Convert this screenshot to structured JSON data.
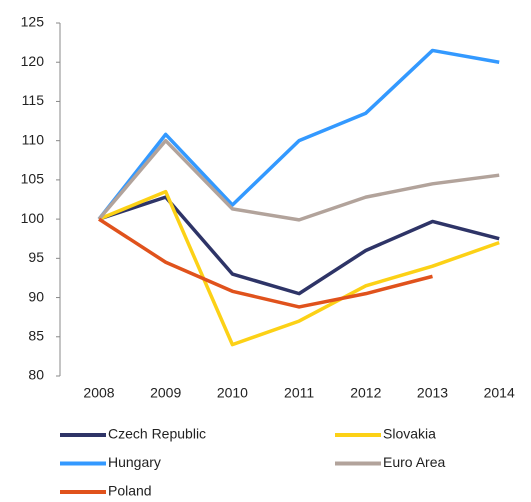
{
  "chart_data": {
    "type": "line",
    "categories": [
      "2008",
      "2009",
      "2010",
      "2011",
      "2012",
      "2013",
      "2014"
    ],
    "series": [
      {
        "name": "Czech Republic",
        "color": "#2e3467",
        "values": [
          100,
          102.8,
          93,
          90.5,
          96,
          99.7,
          97.5
        ]
      },
      {
        "name": "Slovakia",
        "color": "#fcd116",
        "values": [
          100,
          103.5,
          84,
          87,
          91.5,
          94,
          97
        ]
      },
      {
        "name": "Hungary",
        "color": "#3399ff",
        "values": [
          100,
          110.8,
          101.8,
          110,
          113.5,
          121.5,
          120
        ]
      },
      {
        "name": "Euro Area",
        "color": "#b2a39b",
        "values": [
          100,
          110,
          101.3,
          99.9,
          102.8,
          104.5,
          105.6
        ]
      },
      {
        "name": "Poland",
        "color": "#e0521c",
        "values": [
          100,
          94.5,
          90.8,
          88.8,
          90.5,
          92.7,
          null
        ]
      }
    ],
    "ylim": [
      80,
      125
    ],
    "yticks": [
      80,
      85,
      90,
      95,
      100,
      105,
      110,
      115,
      120,
      125
    ],
    "grid": false
  }
}
